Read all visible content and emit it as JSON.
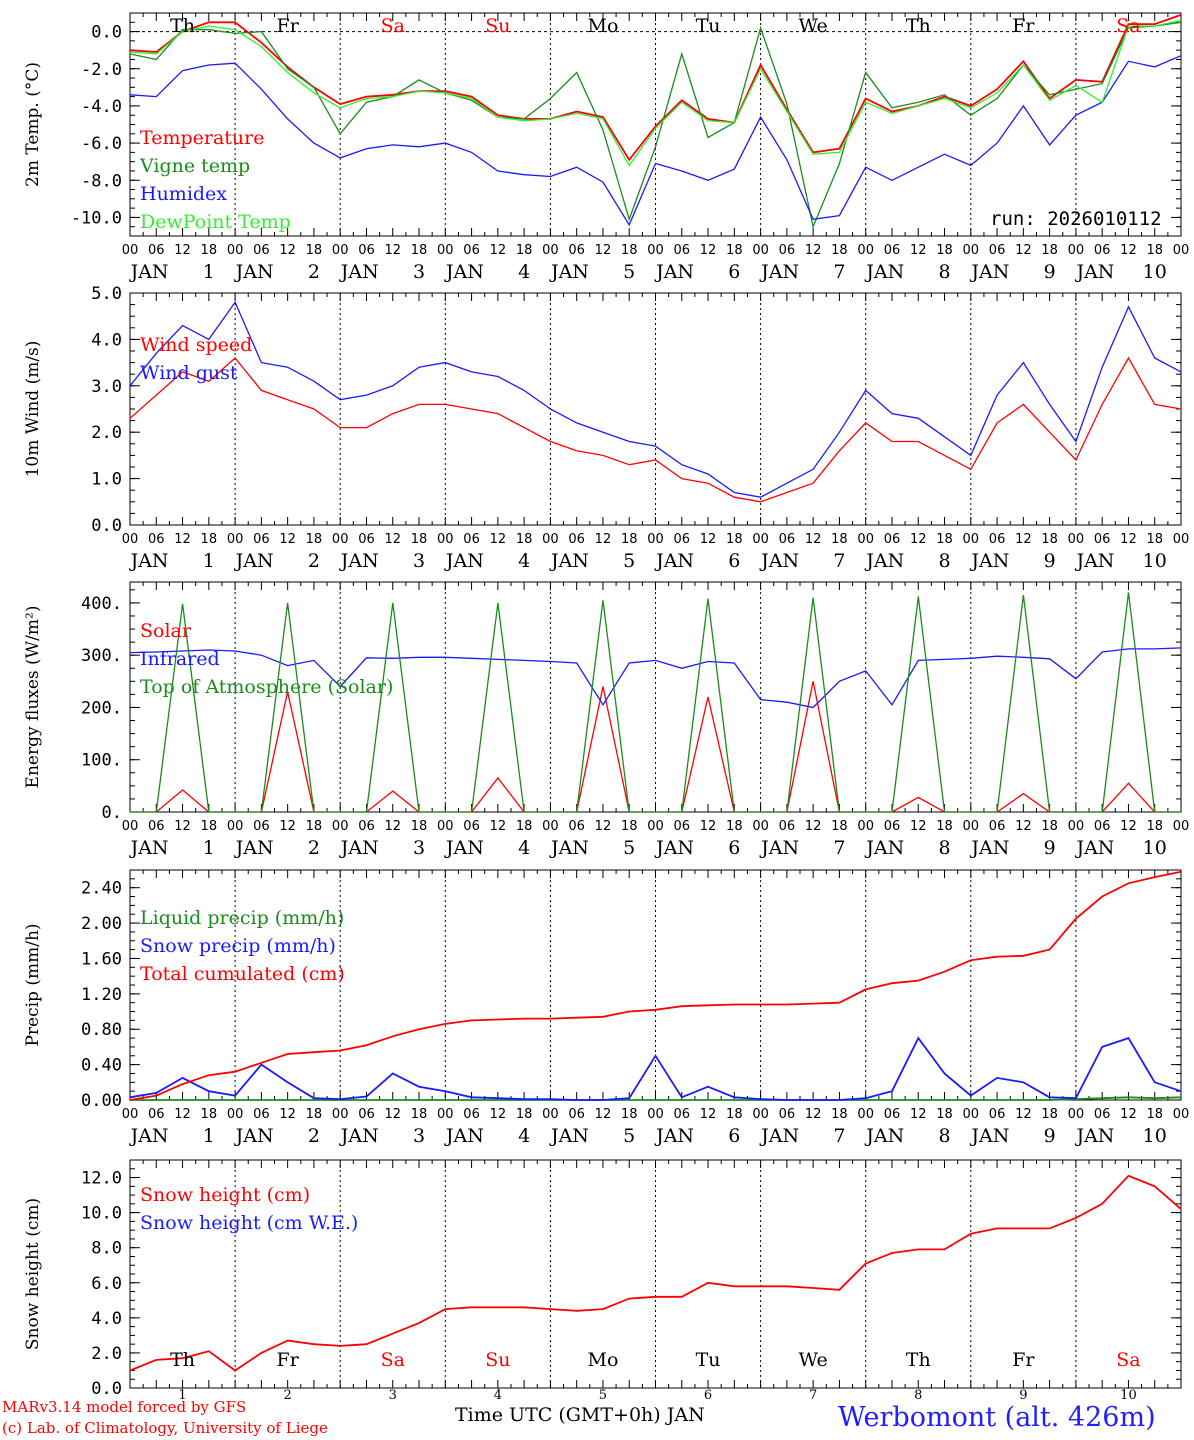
{
  "run_label": "run: 2026010112",
  "station": "Werbomont (alt. 426m)",
  "credit_lines": [
    "MARv3.14 model forced by GFS",
    "(c) Lab. of Climatology, University of Liege"
  ],
  "x_axis_title": "Time UTC (GMT+0h) JAN",
  "colors": {
    "red": "#ff0000",
    "dark_green": "#1a8c1a",
    "blue": "#1a1aff",
    "light_green": "#33ee33",
    "weekend": "#ff0000"
  },
  "days": {
    "names": [
      "Th",
      "Fr",
      "Sa",
      "Su",
      "Mo",
      "Tu",
      "We",
      "Th",
      "Fr",
      "Sa"
    ],
    "weekend_flags": [
      false,
      false,
      true,
      true,
      false,
      false,
      false,
      false,
      false,
      true
    ],
    "dates": [
      "1",
      "2",
      "3",
      "4",
      "5",
      "6",
      "7",
      "8",
      "9",
      "10"
    ],
    "month_label": "JAN",
    "hour_ticks": [
      "00",
      "06",
      "12",
      "18"
    ],
    "final_hour": "00"
  },
  "chart_data": [
    {
      "type": "line",
      "ylabel": "2m Temp. (°C)",
      "ylim": [
        -11.0,
        1.0
      ],
      "yticks": [
        "0.0",
        "-2.0",
        "-4.0",
        "-6.0",
        "-8.0",
        "-10.0"
      ],
      "ytick_values": [
        0,
        -2,
        -4,
        -6,
        -8,
        -10
      ],
      "zero_line": true,
      "x_hours": [
        0,
        6,
        12,
        18,
        24,
        30,
        36,
        42,
        48,
        54,
        60,
        66,
        72,
        78,
        84,
        90,
        96,
        102,
        108,
        114,
        120,
        126,
        132,
        138,
        144,
        150,
        156,
        162,
        168,
        174,
        180,
        186,
        192,
        198,
        204,
        210,
        216,
        222,
        228,
        234,
        240
      ],
      "series": [
        {
          "name": "Temperature",
          "color": "#ff0000",
          "values": [
            -1.0,
            -1.1,
            0.0,
            0.5,
            0.5,
            -0.6,
            -1.9,
            -3.0,
            -3.9,
            -3.5,
            -3.4,
            -3.2,
            -3.2,
            -3.5,
            -4.5,
            -4.7,
            -4.7,
            -4.3,
            -4.6,
            -6.9,
            -5.1,
            -3.7,
            -4.7,
            -4.9,
            -1.8,
            -4.2,
            -6.5,
            -6.3,
            -3.6,
            -4.3,
            -4.0,
            -3.5,
            -4.0,
            -3.1,
            -1.6,
            -3.6,
            -2.6,
            -2.7,
            0.4,
            0.4,
            0.9
          ]
        },
        {
          "name": "Vigne temp",
          "color": "#1a8c1a",
          "values": [
            -1.2,
            -1.5,
            0.1,
            0.1,
            -0.1,
            0.0,
            -2.0,
            -3.0,
            -5.5,
            -3.8,
            -3.5,
            -2.6,
            -3.3,
            -3.7,
            -4.6,
            -4.7,
            -3.6,
            -2.2,
            -5.3,
            -10.1,
            -6.2,
            -1.2,
            -5.7,
            -4.9,
            0.2,
            -3.9,
            -10.5,
            -7.1,
            -2.2,
            -4.1,
            -3.8,
            -3.4,
            -4.5,
            -3.6,
            -1.8,
            -3.4,
            -3.1,
            -2.8,
            0.2,
            0.3,
            0.5
          ]
        },
        {
          "name": "Humidex",
          "color": "#1a1aff",
          "values": [
            -3.4,
            -3.5,
            -2.1,
            -1.8,
            -1.7,
            -3.1,
            -4.7,
            -6.0,
            -6.8,
            -6.3,
            -6.1,
            -6.2,
            -6.0,
            -6.5,
            -7.5,
            -7.7,
            -7.8,
            -7.3,
            -8.1,
            -10.4,
            -7.1,
            -7.5,
            -8.0,
            -7.4,
            -4.6,
            -6.9,
            -10.1,
            -9.9,
            -7.3,
            -8.0,
            -7.3,
            -6.6,
            -7.2,
            -6.0,
            -4.0,
            -6.1,
            -4.5,
            -3.8,
            -1.6,
            -1.9,
            -1.3
          ]
        },
        {
          "name": "DewPoint Temp",
          "color": "#33ee33",
          "values": [
            -1.1,
            -1.2,
            0.0,
            0.3,
            0.1,
            -0.8,
            -2.2,
            -3.3,
            -4.1,
            -3.6,
            -3.5,
            -3.2,
            -3.3,
            -3.6,
            -4.6,
            -4.8,
            -4.7,
            -4.4,
            -4.7,
            -7.2,
            -5.2,
            -3.8,
            -4.8,
            -4.9,
            -2.0,
            -4.3,
            -6.6,
            -6.5,
            -3.8,
            -4.4,
            -4.0,
            -3.6,
            -4.1,
            -3.3,
            -1.8,
            -3.7,
            -2.9,
            -3.8,
            0.3,
            0.3,
            0.6
          ]
        }
      ]
    },
    {
      "type": "line",
      "ylabel": "10m Wind (m/s)",
      "ylim": [
        0.0,
        5.0
      ],
      "yticks": [
        "5.0",
        "4.0",
        "3.0",
        "2.0",
        "1.0",
        "0.0"
      ],
      "ytick_values": [
        5,
        4,
        3,
        2,
        1,
        0
      ],
      "x_hours": [
        0,
        6,
        12,
        18,
        24,
        30,
        36,
        42,
        48,
        54,
        60,
        66,
        72,
        78,
        84,
        90,
        96,
        102,
        108,
        114,
        120,
        126,
        132,
        138,
        144,
        150,
        156,
        162,
        168,
        174,
        180,
        186,
        192,
        198,
        204,
        210,
        216,
        222,
        228,
        234,
        240
      ],
      "series": [
        {
          "name": "Wind speed",
          "color": "#ff0000",
          "values": [
            2.3,
            2.8,
            3.3,
            3.1,
            3.6,
            2.9,
            2.7,
            2.5,
            2.1,
            2.1,
            2.4,
            2.6,
            2.6,
            2.5,
            2.4,
            2.1,
            1.8,
            1.6,
            1.5,
            1.3,
            1.4,
            1.0,
            0.9,
            0.6,
            0.5,
            0.7,
            0.9,
            1.6,
            2.2,
            1.8,
            1.8,
            1.5,
            1.2,
            2.2,
            2.6,
            2.0,
            1.4,
            2.6,
            3.6,
            2.6,
            2.5
          ]
        },
        {
          "name": "Wind gust",
          "color": "#1a1aff",
          "values": [
            3.0,
            3.7,
            4.3,
            4.0,
            4.8,
            3.5,
            3.4,
            3.1,
            2.7,
            2.8,
            3.0,
            3.4,
            3.5,
            3.3,
            3.2,
            2.9,
            2.5,
            2.2,
            2.0,
            1.8,
            1.7,
            1.3,
            1.1,
            0.7,
            0.6,
            0.9,
            1.2,
            2.0,
            2.9,
            2.4,
            2.3,
            1.9,
            1.5,
            2.8,
            3.5,
            2.6,
            1.8,
            3.4,
            4.7,
            3.6,
            3.3
          ]
        }
      ]
    },
    {
      "type": "line",
      "ylabel": "Energy fluxes (W/m²)",
      "ylim": [
        0,
        440
      ],
      "yticks": [
        "400.",
        "300.",
        "200.",
        "100.",
        "0."
      ],
      "ytick_values": [
        400,
        300,
        200,
        100,
        0
      ],
      "x_hours": [
        0,
        6,
        12,
        18,
        24,
        30,
        36,
        42,
        48,
        54,
        60,
        66,
        72,
        78,
        84,
        90,
        96,
        102,
        108,
        114,
        120,
        126,
        132,
        138,
        144,
        150,
        156,
        162,
        168,
        174,
        180,
        186,
        192,
        198,
        204,
        210,
        216,
        222,
        228,
        234,
        240
      ],
      "series": [
        {
          "name": "Solar",
          "color": "#ff0000",
          "values": [
            0,
            0,
            42,
            0,
            0,
            0,
            230,
            0,
            0,
            0,
            40,
            0,
            0,
            0,
            65,
            0,
            0,
            0,
            240,
            0,
            0,
            0,
            220,
            0,
            0,
            0,
            250,
            0,
            0,
            0,
            28,
            0,
            0,
            0,
            35,
            0,
            0,
            0,
            55,
            0,
            0
          ]
        },
        {
          "name": "Infrared",
          "color": "#1a1aff",
          "values": [
            305,
            306,
            308,
            310,
            308,
            300,
            280,
            290,
            240,
            295,
            294,
            296,
            296,
            294,
            292,
            290,
            288,
            285,
            205,
            285,
            290,
            275,
            288,
            285,
            215,
            210,
            200,
            250,
            270,
            205,
            290,
            292,
            294,
            298,
            296,
            293,
            255,
            306,
            312,
            312,
            314
          ]
        },
        {
          "name": "Top of Atmosphere (Solar)",
          "color": "#1a8c1a",
          "values": [
            0,
            0,
            398,
            0,
            0,
            0,
            400,
            0,
            0,
            0,
            400,
            0,
            0,
            0,
            400,
            0,
            0,
            0,
            405,
            0,
            0,
            0,
            408,
            0,
            0,
            0,
            410,
            0,
            0,
            0,
            412,
            0,
            0,
            0,
            415,
            0,
            0,
            0,
            420,
            0,
            0
          ]
        }
      ]
    },
    {
      "type": "line",
      "ylabel": "Precip (mm/h)",
      "ylim": [
        0.0,
        2.6
      ],
      "yticks": [
        "2.40",
        "2.00",
        "1.60",
        "1.20",
        "0.80",
        "0.40",
        "0.00"
      ],
      "ytick_values": [
        2.4,
        2.0,
        1.6,
        1.2,
        0.8,
        0.4,
        0.0
      ],
      "x_hours": [
        0,
        6,
        12,
        18,
        24,
        30,
        36,
        42,
        48,
        54,
        60,
        66,
        72,
        78,
        84,
        90,
        96,
        102,
        108,
        114,
        120,
        126,
        132,
        138,
        144,
        150,
        156,
        162,
        168,
        174,
        180,
        186,
        192,
        198,
        204,
        210,
        216,
        222,
        228,
        234,
        240
      ],
      "series": [
        {
          "name": "Liquid precip (mm/h)",
          "color": "#1a8c1a",
          "values": [
            0,
            0,
            0,
            0,
            0,
            0,
            0,
            0,
            0,
            0,
            0,
            0,
            0,
            0,
            0,
            0,
            0,
            0,
            0,
            0,
            0,
            0,
            0,
            0,
            0,
            0,
            0,
            0,
            0,
            0,
            0,
            0,
            0,
            0,
            0,
            0,
            0.01,
            0.02,
            0.03,
            0.02,
            0.03
          ]
        },
        {
          "name": "Snow precip (mm/h)",
          "color": "#1a1aff",
          "values": [
            0.03,
            0.08,
            0.25,
            0.1,
            0.05,
            0.4,
            0.2,
            0.02,
            0.01,
            0.04,
            0.3,
            0.15,
            0.1,
            0.03,
            0.02,
            0.01,
            0.01,
            0.0,
            0.0,
            0.02,
            0.5,
            0.03,
            0.15,
            0.03,
            0.01,
            0.0,
            0.0,
            0.0,
            0.02,
            0.1,
            0.7,
            0.3,
            0.05,
            0.25,
            0.2,
            0.03,
            0.02,
            0.6,
            0.7,
            0.2,
            0.1
          ]
        },
        {
          "name": "Total cumulated (cm)",
          "color": "#ff0000",
          "values": [
            0.0,
            0.05,
            0.18,
            0.28,
            0.32,
            0.42,
            0.52,
            0.54,
            0.56,
            0.62,
            0.72,
            0.8,
            0.86,
            0.9,
            0.91,
            0.92,
            0.92,
            0.93,
            0.94,
            1.0,
            1.02,
            1.06,
            1.07,
            1.08,
            1.08,
            1.08,
            1.09,
            1.1,
            1.25,
            1.32,
            1.35,
            1.45,
            1.58,
            1.62,
            1.63,
            1.7,
            2.05,
            2.3,
            2.45,
            2.52,
            2.58
          ]
        }
      ]
    },
    {
      "type": "line",
      "ylabel": "Snow height (cm)",
      "ylim": [
        0.0,
        13.0
      ],
      "yticks": [
        "12.0",
        "10.0",
        "8.0",
        "6.0",
        "4.0",
        "2.0",
        "0.0"
      ],
      "ytick_values": [
        12,
        10,
        8,
        6,
        4,
        2,
        0
      ],
      "x_hours": [
        0,
        6,
        12,
        18,
        24,
        30,
        36,
        42,
        48,
        54,
        60,
        66,
        72,
        78,
        84,
        90,
        96,
        102,
        108,
        114,
        120,
        126,
        132,
        138,
        144,
        150,
        156,
        162,
        168,
        174,
        180,
        186,
        192,
        198,
        204,
        210,
        216,
        222,
        228,
        234,
        240
      ],
      "series": [
        {
          "name": "Snow height (cm)",
          "color": "#ff0000",
          "values": [
            1.0,
            1.6,
            1.7,
            2.1,
            1.0,
            2.0,
            2.7,
            2.5,
            2.4,
            2.5,
            3.1,
            3.7,
            4.5,
            4.6,
            4.6,
            4.6,
            4.5,
            4.4,
            4.5,
            5.1,
            5.2,
            5.2,
            6.0,
            5.8,
            5.8,
            5.8,
            5.7,
            5.6,
            7.1,
            7.7,
            7.9,
            7.9,
            8.8,
            9.1,
            9.1,
            9.1,
            9.7,
            10.5,
            12.1,
            11.5,
            10.2
          ]
        },
        {
          "name": "Snow height (cm W.E.)",
          "color": "#1a1aff",
          "values": []
        }
      ]
    }
  ]
}
